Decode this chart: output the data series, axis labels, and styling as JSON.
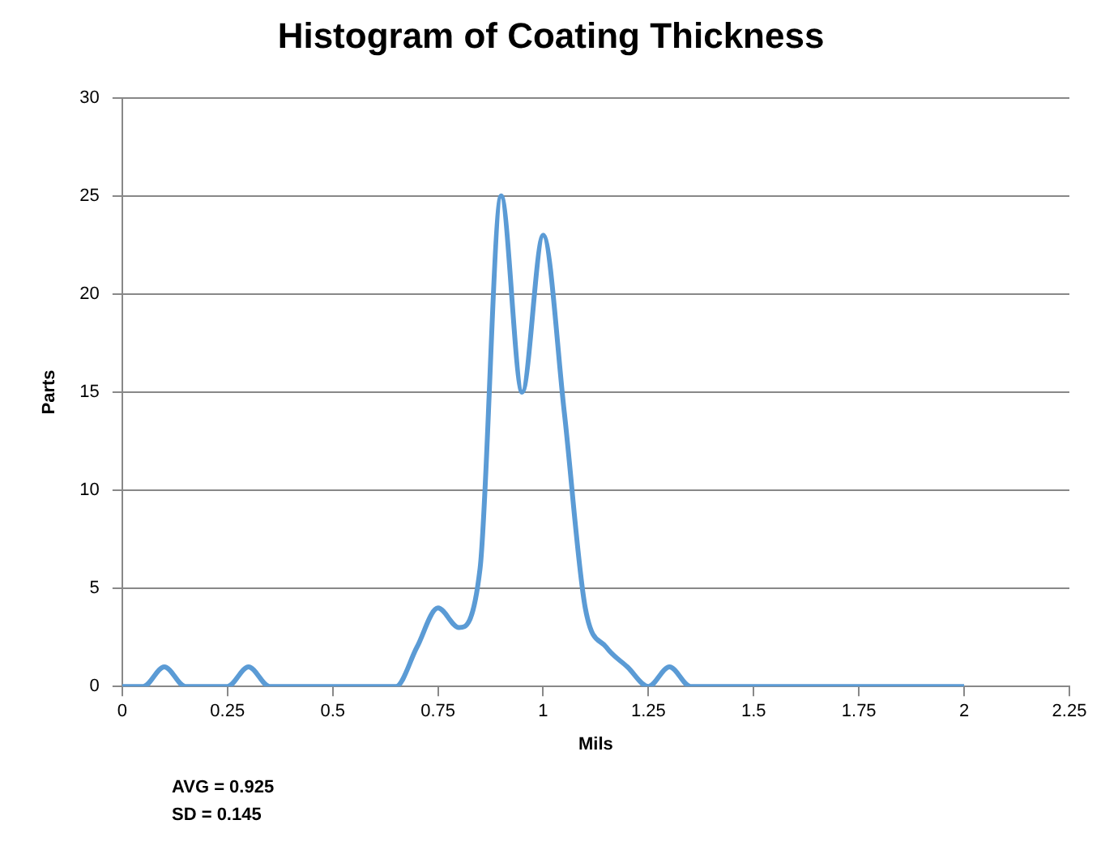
{
  "chart_data": {
    "type": "line",
    "title": "Histogram of Coating Thickness",
    "xlabel": "Mils",
    "ylabel": "Parts",
    "x": [
      0,
      0.05,
      0.1,
      0.15,
      0.2,
      0.25,
      0.3,
      0.35,
      0.4,
      0.45,
      0.5,
      0.55,
      0.6,
      0.65,
      0.7,
      0.75,
      0.8,
      0.85,
      0.9,
      0.95,
      1,
      1.05,
      1.1,
      1.15,
      1.2,
      1.25,
      1.3,
      1.35,
      1.4,
      1.45,
      1.5,
      1.55,
      1.6,
      1.65,
      1.7,
      1.75,
      1.8,
      1.85,
      1.9,
      1.95,
      2
    ],
    "series": [
      {
        "color": "#5b9bd5",
        "values": [
          0,
          0,
          1,
          0,
          0,
          0,
          1,
          0,
          0,
          0,
          0,
          0,
          0,
          0,
          2,
          4,
          3,
          6,
          25,
          15,
          23,
          14,
          4,
          2,
          1,
          0,
          1,
          0,
          0,
          0,
          0,
          0,
          0,
          0,
          0,
          0,
          0,
          0,
          0,
          0,
          0
        ]
      }
    ],
    "xlim": [
      0,
      2.25
    ],
    "xticks": [
      0,
      0.25,
      0.5,
      0.75,
      1,
      1.25,
      1.5,
      1.75,
      2,
      2.25
    ],
    "ylim": [
      0,
      30
    ],
    "yticks": [
      0,
      5,
      10,
      15,
      20,
      25,
      30
    ],
    "grid": "y",
    "legend": false,
    "marker": "none",
    "line_style": "solid",
    "annotations": [
      "AVG = 0.925",
      "SD = 0.145"
    ]
  }
}
